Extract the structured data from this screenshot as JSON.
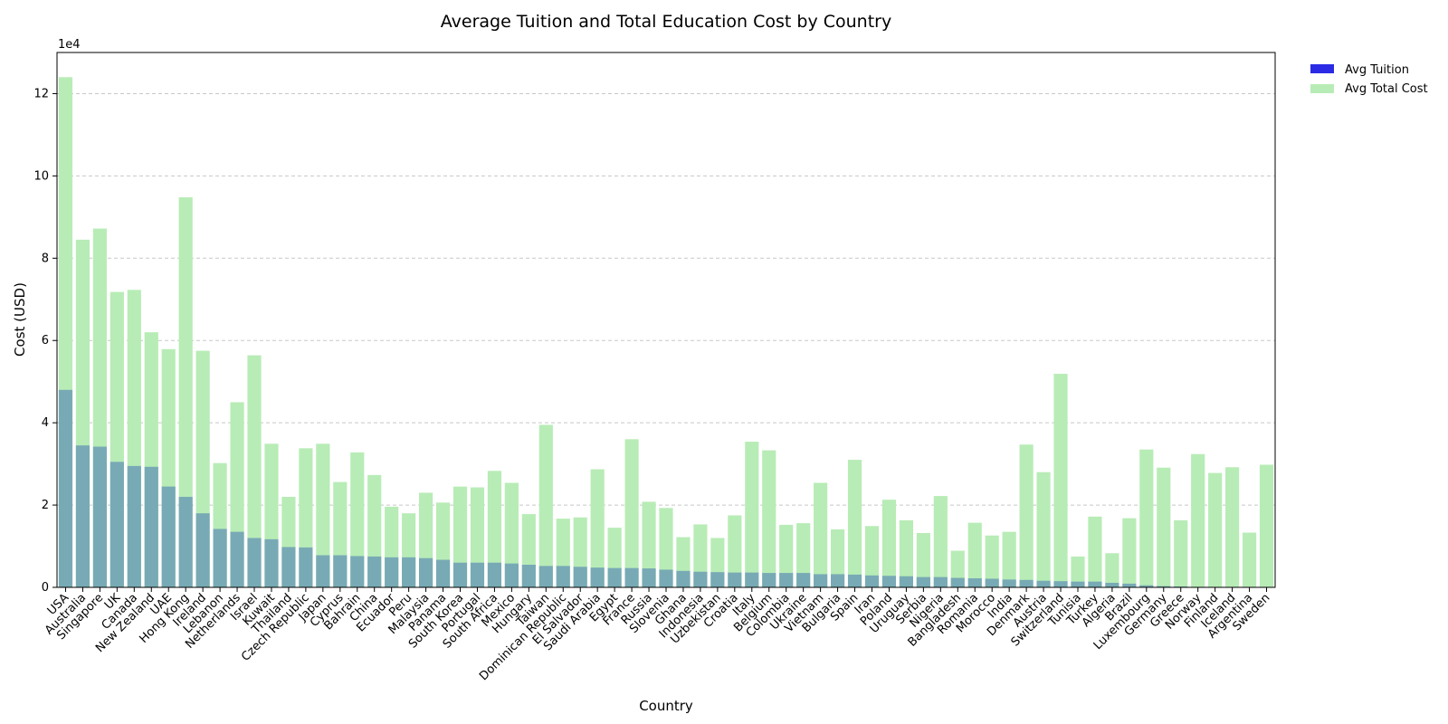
{
  "chart_data": {
    "type": "bar",
    "title": "Average Tuition and Total Education Cost by Country",
    "xlabel": "Country",
    "ylabel": "Cost (USD)",
    "y_multiplier_label": "1e4",
    "ylim": [
      0,
      130000
    ],
    "yticks": [
      0,
      20000,
      40000,
      60000,
      80000,
      100000,
      120000
    ],
    "ytick_labels": [
      "0",
      "2",
      "4",
      "6",
      "8",
      "10",
      "12"
    ],
    "grid": "y-dashed",
    "legend_position": "outside-top-right",
    "colors": {
      "tuition": "#2b2be6",
      "total": "#b8ecb6",
      "overlap": "#78aab5"
    },
    "categories": [
      "USA",
      "Australia",
      "Singapore",
      "UK",
      "Canada",
      "New Zealand",
      "UAE",
      "Hong Kong",
      "Ireland",
      "Lebanon",
      "Netherlands",
      "Israel",
      "Kuwait",
      "Thailand",
      "Czech Republic",
      "Japan",
      "Cyprus",
      "Bahrain",
      "China",
      "Ecuador",
      "Peru",
      "Malaysia",
      "Panama",
      "South Korea",
      "Portugal",
      "South Africa",
      "Mexico",
      "Hungary",
      "Taiwan",
      "Dominican Republic",
      "El Salvador",
      "Saudi Arabia",
      "Egypt",
      "France",
      "Russia",
      "Slovenia",
      "Ghana",
      "Indonesia",
      "Uzbekistan",
      "Croatia",
      "Italy",
      "Belgium",
      "Colombia",
      "Ukraine",
      "Vietnam",
      "Bulgaria",
      "Spain",
      "Iran",
      "Poland",
      "Uruguay",
      "Serbia",
      "Nigeria",
      "Bangladesh",
      "Romania",
      "Morocco",
      "India",
      "Denmark",
      "Austria",
      "Switzerland",
      "Tunisia",
      "Turkey",
      "Algeria",
      "Brazil",
      "Luxembourg",
      "Germany",
      "Greece",
      "Norway",
      "Finland",
      "Iceland",
      "Argentina",
      "Sweden"
    ],
    "series": [
      {
        "name": "Avg Tuition",
        "values": [
          48000,
          34500,
          34200,
          30500,
          29500,
          29300,
          24500,
          22000,
          18000,
          14200,
          13500,
          12000,
          11700,
          9800,
          9700,
          7800,
          7800,
          7600,
          7500,
          7300,
          7300,
          7100,
          6700,
          6000,
          6000,
          6000,
          5800,
          5500,
          5200,
          5200,
          5000,
          4800,
          4700,
          4700,
          4600,
          4300,
          4000,
          3800,
          3700,
          3600,
          3600,
          3500,
          3500,
          3500,
          3200,
          3200,
          3100,
          2900,
          2800,
          2700,
          2500,
          2500,
          2300,
          2200,
          2100,
          1900,
          1800,
          1600,
          1500,
          1400,
          1400,
          1100,
          900,
          500,
          300,
          200,
          0,
          0,
          0,
          0,
          0
        ]
      },
      {
        "name": "Avg Total Cost",
        "values": [
          124000,
          84500,
          87200,
          71800,
          72300,
          62000,
          57900,
          94800,
          57500,
          30200,
          45000,
          56400,
          34900,
          22000,
          33800,
          34900,
          25600,
          32800,
          27300,
          19600,
          18000,
          23000,
          20600,
          24500,
          24300,
          28300,
          25400,
          17800,
          39500,
          16700,
          17000,
          28700,
          14500,
          36000,
          20800,
          19300,
          12200,
          15300,
          12000,
          17500,
          35400,
          33300,
          15200,
          15600,
          25400,
          14100,
          31000,
          14900,
          21300,
          16300,
          13200,
          22200,
          8900,
          15700,
          12600,
          13500,
          34700,
          28000,
          51900,
          7500,
          17200,
          8300,
          16800,
          33500,
          29100,
          16300,
          32400,
          27800,
          29200,
          13300,
          29800
        ]
      }
    ]
  }
}
